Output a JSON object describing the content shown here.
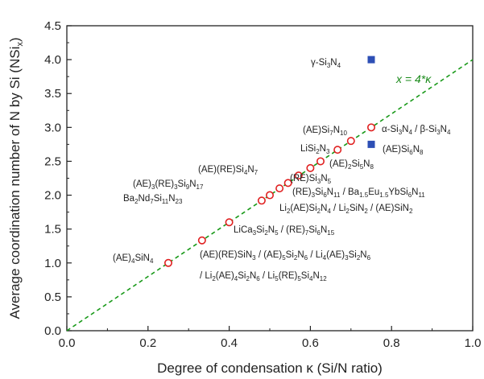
{
  "chart_data": {
    "type": "scatter",
    "xlabel": "Degree of condensation κ (Si/N ratio)",
    "ylabel_parts": [
      "Average coordination number of N by Si (NSi",
      "x",
      ")"
    ],
    "xlim": [
      0.0,
      1.0
    ],
    "ylim": [
      0.0,
      4.5
    ],
    "x_ticks": [
      "0.0",
      "0.2",
      "0.4",
      "0.6",
      "0.8",
      "1.0"
    ],
    "y_ticks": [
      "0.0",
      "0.5",
      "1.0",
      "1.5",
      "2.0",
      "2.5",
      "3.0",
      "3.5",
      "4.0",
      "4.5"
    ],
    "fit_line": {
      "label": "x = 4*κ",
      "slope": 4,
      "color": "#1a9a1a"
    },
    "series": [
      {
        "marker": "open-circle",
        "color": "#e02020",
        "points": [
          {
            "x": 0.25,
            "y": 1.0
          },
          {
            "x": 0.333,
            "y": 1.333
          },
          {
            "x": 0.4,
            "y": 1.6
          },
          {
            "x": 0.48,
            "y": 1.92
          },
          {
            "x": 0.5,
            "y": 2.0
          },
          {
            "x": 0.524,
            "y": 2.1
          },
          {
            "x": 0.545,
            "y": 2.18
          },
          {
            "x": 0.571,
            "y": 2.29
          },
          {
            "x": 0.6,
            "y": 2.4
          },
          {
            "x": 0.625,
            "y": 2.5
          },
          {
            "x": 0.667,
            "y": 2.67
          },
          {
            "x": 0.7,
            "y": 2.8
          },
          {
            "x": 0.75,
            "y": 3.0
          }
        ]
      },
      {
        "marker": "filled-square",
        "color": "#2d4fb5",
        "points": [
          {
            "x": 0.75,
            "y": 4.0
          },
          {
            "x": 0.75,
            "y": 2.75
          }
        ]
      }
    ],
    "annotations": [
      {
        "parts": [
          [
            "(AE)",
            ""
          ],
          [
            "4",
            "sub"
          ],
          [
            "SiN",
            ""
          ],
          [
            "4",
            "sub"
          ]
        ]
      },
      {
        "parts": [
          [
            "(AE)(RE)SiN",
            ""
          ],
          [
            "3",
            "sub"
          ],
          [
            " / (AE)",
            ""
          ],
          [
            "5",
            "sub"
          ],
          [
            "Si",
            ""
          ],
          [
            "2",
            "sub"
          ],
          [
            "N",
            ""
          ],
          [
            "6",
            "sub"
          ],
          [
            " / Li",
            ""
          ],
          [
            "4",
            "sub"
          ],
          [
            "(AE)",
            ""
          ],
          [
            "3",
            "sub"
          ],
          [
            "Si",
            ""
          ],
          [
            "2",
            "sub"
          ],
          [
            "N",
            ""
          ],
          [
            "6",
            "sub"
          ]
        ]
      },
      {
        "parts": [
          [
            "/ Li",
            ""
          ],
          [
            "2",
            "sub"
          ],
          [
            "(AE)",
            ""
          ],
          [
            "4",
            "sub"
          ],
          [
            "Si",
            ""
          ],
          [
            "2",
            "sub"
          ],
          [
            "N",
            ""
          ],
          [
            "6",
            "sub"
          ],
          [
            " / Li",
            ""
          ],
          [
            "5",
            "sub"
          ],
          [
            "(RE)",
            ""
          ],
          [
            "5",
            "sub"
          ],
          [
            "Si",
            ""
          ],
          [
            "4",
            "sub"
          ],
          [
            "N",
            ""
          ],
          [
            "12",
            "sub"
          ]
        ]
      },
      {
        "parts": [
          [
            "LiCa",
            ""
          ],
          [
            "3",
            "sub"
          ],
          [
            "Si",
            ""
          ],
          [
            "2",
            "sub"
          ],
          [
            "N",
            ""
          ],
          [
            "5",
            "sub"
          ],
          [
            " / (RE)",
            ""
          ],
          [
            "7",
            "sub"
          ],
          [
            "Si",
            ""
          ],
          [
            "6",
            "sub"
          ],
          [
            "N",
            ""
          ],
          [
            "15",
            "sub"
          ]
        ]
      },
      {
        "parts": [
          [
            "Ba",
            ""
          ],
          [
            "2",
            "sub"
          ],
          [
            "Nd",
            ""
          ],
          [
            "7",
            "sub"
          ],
          [
            "Si",
            ""
          ],
          [
            "11",
            "sub"
          ],
          [
            "N",
            ""
          ],
          [
            "23",
            "sub"
          ]
        ]
      },
      {
        "parts": [
          [
            "(AE)",
            ""
          ],
          [
            "3",
            "sub"
          ],
          [
            "(RE)",
            ""
          ],
          [
            "3",
            "sub"
          ],
          [
            "Si",
            ""
          ],
          [
            "9",
            "sub"
          ],
          [
            "N",
            ""
          ],
          [
            "17",
            "sub"
          ]
        ]
      },
      {
        "parts": [
          [
            "(AE)(RE)Si",
            ""
          ],
          [
            "4",
            "sub"
          ],
          [
            "N",
            ""
          ],
          [
            "7",
            "sub"
          ]
        ]
      },
      {
        "parts": [
          [
            "(RE)",
            ""
          ],
          [
            "3",
            "sub"
          ],
          [
            "Si",
            ""
          ],
          [
            "6",
            "sub"
          ],
          [
            "N",
            ""
          ],
          [
            "11",
            "sub"
          ],
          [
            " / Ba",
            ""
          ],
          [
            "1.5",
            "sub"
          ],
          [
            "Eu",
            ""
          ],
          [
            "1.5",
            "sub"
          ],
          [
            "YbSi",
            ""
          ],
          [
            "6",
            "sub"
          ],
          [
            "N",
            ""
          ],
          [
            "11",
            "sub"
          ]
        ]
      },
      {
        "parts": [
          [
            "Li",
            ""
          ],
          [
            "2",
            "sub"
          ],
          [
            "(AE)Si",
            ""
          ],
          [
            "2",
            "sub"
          ],
          [
            "N",
            ""
          ],
          [
            "4",
            "sub"
          ],
          [
            " / Li",
            ""
          ],
          [
            "2",
            "sub"
          ],
          [
            "SiN",
            ""
          ],
          [
            "2",
            "sub"
          ],
          [
            " / (AE)SiN",
            ""
          ],
          [
            "2",
            "sub"
          ]
        ]
      },
      {
        "parts": [
          [
            "(RE)Si",
            ""
          ],
          [
            "3",
            "sub"
          ],
          [
            "N",
            ""
          ],
          [
            "5",
            "sub"
          ]
        ]
      },
      {
        "parts": [
          [
            "(AE)",
            ""
          ],
          [
            "2",
            "sub"
          ],
          [
            "Si",
            ""
          ],
          [
            "5",
            "sub"
          ],
          [
            "N",
            ""
          ],
          [
            "8",
            "sub"
          ]
        ]
      },
      {
        "parts": [
          [
            "LiSi",
            ""
          ],
          [
            "2",
            "sub"
          ],
          [
            "N",
            ""
          ],
          [
            "3",
            "sub"
          ]
        ]
      },
      {
        "parts": [
          [
            "(AE)Si",
            ""
          ],
          [
            "7",
            "sub"
          ],
          [
            "N",
            ""
          ],
          [
            "10",
            "sub"
          ]
        ]
      },
      {
        "parts": [
          [
            "α-Si",
            ""
          ],
          [
            "3",
            "sub"
          ],
          [
            "N",
            ""
          ],
          [
            "4",
            "sub"
          ],
          [
            " / β-Si",
            ""
          ],
          [
            "3",
            "sub"
          ],
          [
            "N",
            ""
          ],
          [
            "4",
            "sub"
          ]
        ]
      },
      {
        "parts": [
          [
            "(AE)Si",
            ""
          ],
          [
            "6",
            "sub"
          ],
          [
            "N",
            ""
          ],
          [
            "8",
            "sub"
          ]
        ]
      },
      {
        "parts": [
          [
            "γ-Si",
            ""
          ],
          [
            "3",
            "sub"
          ],
          [
            "N",
            ""
          ],
          [
            "4",
            "sub"
          ]
        ]
      }
    ]
  }
}
